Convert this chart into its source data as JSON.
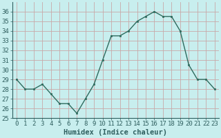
{
  "x": [
    0,
    1,
    2,
    3,
    4,
    5,
    6,
    7,
    8,
    9,
    10,
    11,
    12,
    13,
    14,
    15,
    16,
    17,
    18,
    19,
    20,
    21,
    22,
    23
  ],
  "y": [
    29,
    28,
    28,
    28.5,
    27.5,
    26.5,
    26.5,
    25.5,
    27,
    28.5,
    31,
    33.5,
    33.5,
    34,
    35,
    35.5,
    36,
    35.5,
    35.5,
    34,
    30.5,
    29,
    29,
    28
  ],
  "line_color": "#2e6b5e",
  "marker_color": "#2e6b5e",
  "bg_color": "#c8eeee",
  "grid_color": "#c8a8a8",
  "text_color": "#2e5e5e",
  "xlabel": "Humidex (Indice chaleur)",
  "ylim": [
    25,
    37
  ],
  "yticks": [
    25,
    26,
    27,
    28,
    29,
    30,
    31,
    32,
    33,
    34,
    35,
    36
  ],
  "xticks": [
    0,
    1,
    2,
    3,
    4,
    5,
    6,
    7,
    8,
    9,
    10,
    11,
    12,
    13,
    14,
    15,
    16,
    17,
    18,
    19,
    20,
    21,
    22,
    23
  ],
  "tick_fontsize": 6.5,
  "label_fontsize": 7.5,
  "linewidth": 1.0,
  "markersize": 2.0
}
